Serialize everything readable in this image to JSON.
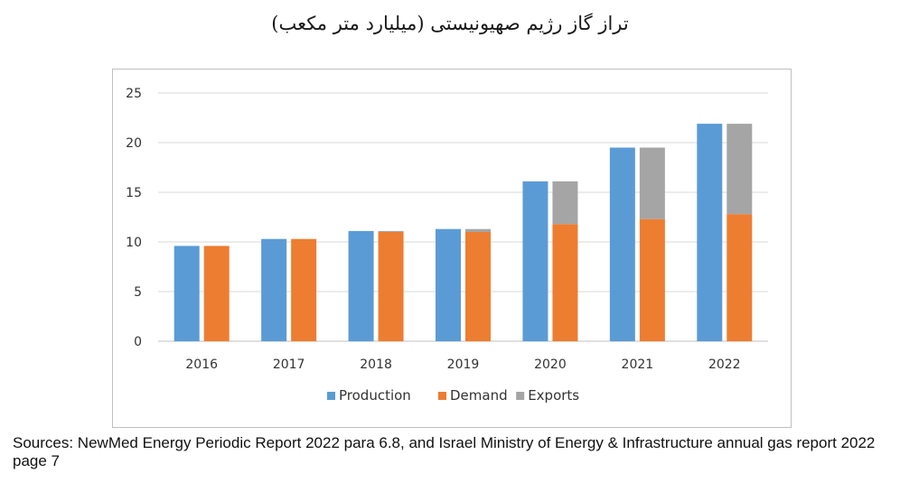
{
  "title": "تراز گاز رژیم صهیونیستی (میلیارد متر مکعب)",
  "source": "Sources: NewMed Energy Periodic Report 2022 para 6.8, and Israel Ministry of Energy & Infrastructure annual gas report 2022 page 7",
  "chart_data": {
    "type": "bar",
    "stacked_series": [
      "Demand",
      "Exports"
    ],
    "categories": [
      "2016",
      "2017",
      "2018",
      "2019",
      "2020",
      "2021",
      "2022"
    ],
    "series": [
      {
        "name": "Production",
        "values": [
          9.6,
          10.3,
          11.1,
          11.3,
          16.1,
          19.5,
          21.9
        ],
        "color": "#5b9bd5"
      },
      {
        "name": "Demand",
        "values": [
          9.6,
          10.3,
          11.0,
          11.0,
          11.8,
          12.3,
          12.8
        ],
        "color": "#ed7d31"
      },
      {
        "name": "Exports",
        "values": [
          0.0,
          0.0,
          0.1,
          0.3,
          4.3,
          7.2,
          9.1
        ],
        "color": "#a5a5a5"
      }
    ],
    "ylim": [
      0,
      25
    ],
    "yticks": [
      0,
      5,
      10,
      15,
      20,
      25
    ],
    "grid": true,
    "legend": "bottom",
    "xlabel": "",
    "ylabel": ""
  }
}
